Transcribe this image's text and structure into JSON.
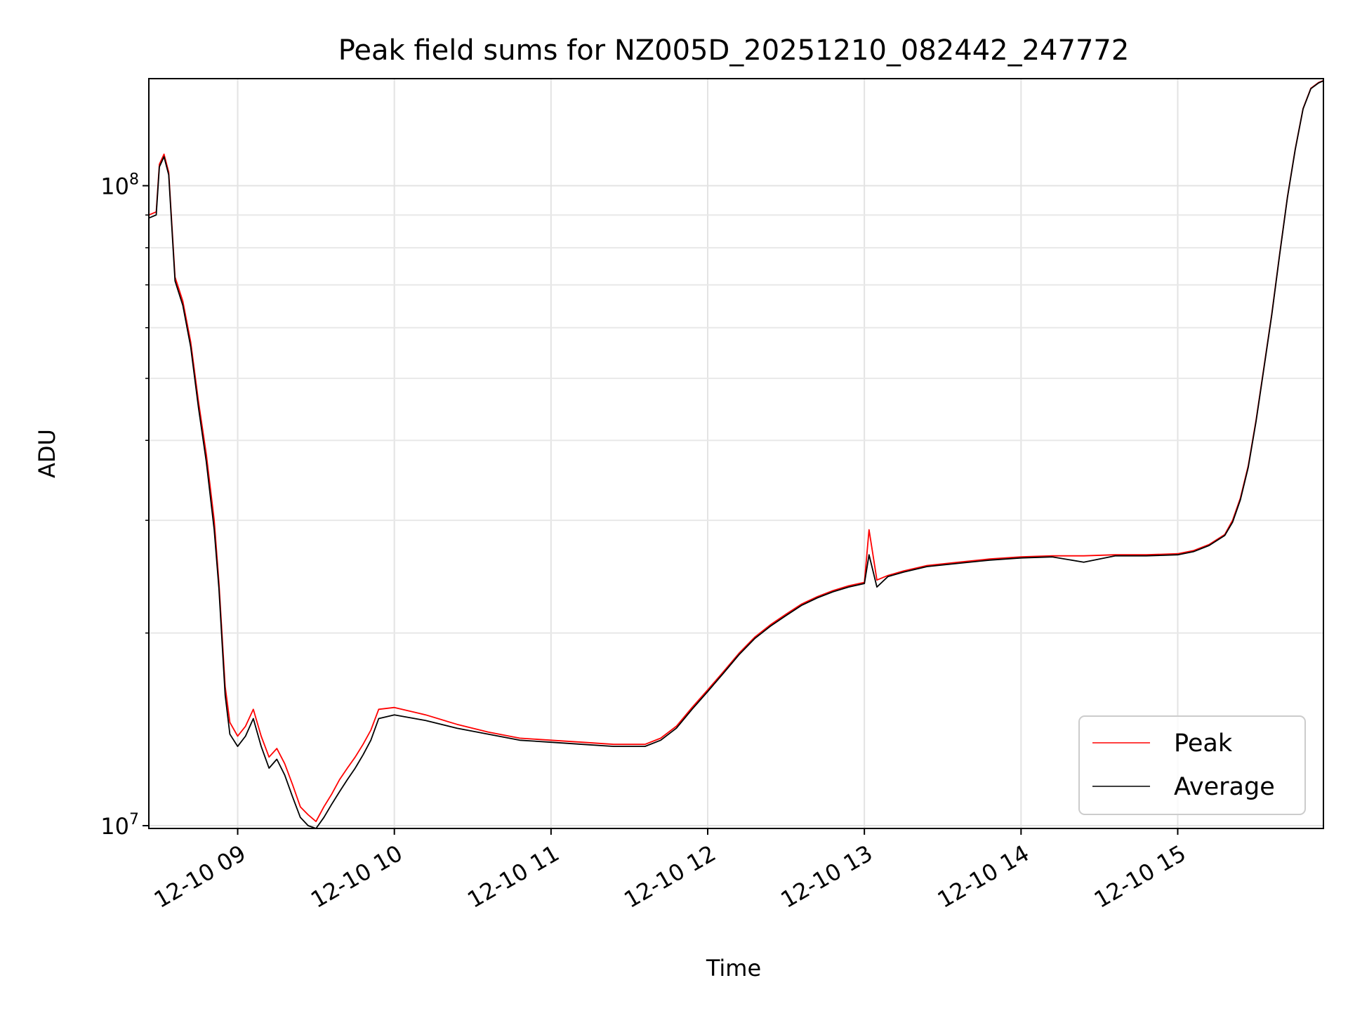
{
  "chart_data": {
    "type": "line",
    "title": "Peak field sums for NZ005D_20251210_082442_247772",
    "xlabel": "Time",
    "ylabel": "ADU",
    "y_scale": "log",
    "ylim": [
      9900000,
      147000000
    ],
    "xlim_hours": [
      8.433,
      15.93
    ],
    "grid": true,
    "legend_position": "lower-right",
    "x_ticks": [
      {
        "value": 9,
        "label": "12-10 09"
      },
      {
        "value": 10,
        "label": "12-10 10"
      },
      {
        "value": 11,
        "label": "12-10 11"
      },
      {
        "value": 12,
        "label": "12-10 12"
      },
      {
        "value": 13,
        "label": "12-10 13"
      },
      {
        "value": 14,
        "label": "12-10 14"
      },
      {
        "value": 15,
        "label": "12-10 15"
      }
    ],
    "y_ticks": [
      {
        "value": 10000000,
        "base": "10",
        "exp": "7"
      },
      {
        "value": 100000000,
        "base": "10",
        "exp": "8"
      }
    ],
    "series": [
      {
        "name": "Peak",
        "color": "#ff0000",
        "x_hours": [
          8.433,
          8.48,
          8.5,
          8.53,
          8.56,
          8.6,
          8.65,
          8.7,
          8.75,
          8.8,
          8.85,
          8.88,
          8.92,
          8.95,
          9.0,
          9.05,
          9.1,
          9.15,
          9.2,
          9.25,
          9.3,
          9.35,
          9.4,
          9.45,
          9.5,
          9.55,
          9.6,
          9.65,
          9.7,
          9.75,
          9.8,
          9.85,
          9.9,
          10.0,
          10.2,
          10.4,
          10.6,
          10.8,
          11.0,
          11.2,
          11.4,
          11.6,
          11.7,
          11.8,
          11.9,
          12.0,
          12.1,
          12.2,
          12.3,
          12.4,
          12.5,
          12.6,
          12.7,
          12.8,
          12.9,
          13.0,
          13.03,
          13.08,
          13.15,
          13.25,
          13.4,
          13.6,
          13.8,
          14.0,
          14.2,
          14.4,
          14.6,
          14.8,
          15.0,
          15.1,
          15.2,
          15.3,
          15.35,
          15.4,
          15.45,
          15.5,
          15.55,
          15.6,
          15.65,
          15.7,
          15.75,
          15.8,
          15.85,
          15.9,
          15.93
        ],
        "values": [
          90000000,
          91000000,
          108000000,
          112000000,
          105000000,
          72000000,
          66000000,
          57000000,
          46000000,
          38000000,
          30000000,
          24000000,
          16500000,
          14500000,
          13800000,
          14300000,
          15200000,
          13800000,
          12800000,
          13200000,
          12500000,
          11600000,
          10700000,
          10400000,
          10150000,
          10700000,
          11200000,
          11800000,
          12300000,
          12800000,
          13400000,
          14100000,
          15200000,
          15300000,
          14900000,
          14400000,
          14000000,
          13700000,
          13600000,
          13500000,
          13400000,
          13400000,
          13700000,
          14300000,
          15300000,
          16300000,
          17400000,
          18600000,
          19700000,
          20600000,
          21400000,
          22200000,
          22800000,
          23300000,
          23700000,
          24000000,
          29000000,
          24200000,
          24600000,
          25000000,
          25500000,
          25800000,
          26100000,
          26300000,
          26400000,
          26400000,
          26500000,
          26500000,
          26600000,
          26900000,
          27500000,
          28500000,
          30000000,
          32500000,
          36500000,
          43000000,
          52000000,
          63000000,
          78000000,
          96000000,
          114000000,
          132000000,
          142000000,
          145000000,
          146000000
        ]
      },
      {
        "name": "Average",
        "color": "#000000",
        "x_hours": [
          8.433,
          8.48,
          8.5,
          8.53,
          8.56,
          8.6,
          8.65,
          8.7,
          8.75,
          8.8,
          8.85,
          8.88,
          8.92,
          8.95,
          9.0,
          9.05,
          9.1,
          9.15,
          9.2,
          9.25,
          9.3,
          9.35,
          9.4,
          9.45,
          9.5,
          9.55,
          9.6,
          9.65,
          9.7,
          9.75,
          9.8,
          9.85,
          9.9,
          10.0,
          10.2,
          10.4,
          10.6,
          10.8,
          11.0,
          11.2,
          11.4,
          11.6,
          11.7,
          11.8,
          11.9,
          12.0,
          12.1,
          12.2,
          12.3,
          12.4,
          12.5,
          12.6,
          12.7,
          12.8,
          12.9,
          13.0,
          13.03,
          13.08,
          13.15,
          13.25,
          13.4,
          13.6,
          13.8,
          14.0,
          14.2,
          14.4,
          14.6,
          14.8,
          15.0,
          15.1,
          15.2,
          15.3,
          15.35,
          15.4,
          15.45,
          15.5,
          15.55,
          15.6,
          15.65,
          15.7,
          15.75,
          15.8,
          15.85,
          15.9,
          15.93
        ],
        "values": [
          89000000,
          90000000,
          107000000,
          111000000,
          104000000,
          71000000,
          65000000,
          56000000,
          45000000,
          37000000,
          29000000,
          23500000,
          16000000,
          13900000,
          13300000,
          13800000,
          14700000,
          13300000,
          12300000,
          12700000,
          12000000,
          11100000,
          10300000,
          10000000,
          9900000,
          10300000,
          10800000,
          11300000,
          11800000,
          12300000,
          12900000,
          13600000,
          14700000,
          14900000,
          14600000,
          14200000,
          13900000,
          13600000,
          13500000,
          13400000,
          13300000,
          13300000,
          13600000,
          14200000,
          15200000,
          16200000,
          17300000,
          18500000,
          19600000,
          20500000,
          21300000,
          22100000,
          22700000,
          23200000,
          23600000,
          23900000,
          26500000,
          23600000,
          24500000,
          24900000,
          25400000,
          25700000,
          26000000,
          26200000,
          26300000,
          25800000,
          26400000,
          26400000,
          26500000,
          26800000,
          27400000,
          28400000,
          29800000,
          32300000,
          36300000,
          42800000,
          51800000,
          62800000,
          77800000,
          95800000,
          113800000,
          131800000,
          141800000,
          144800000,
          145800000
        ]
      }
    ]
  }
}
